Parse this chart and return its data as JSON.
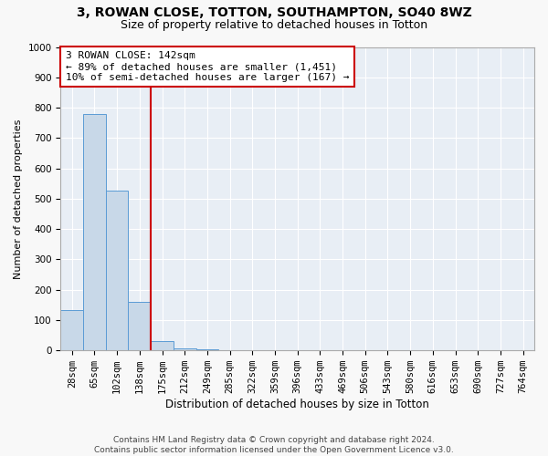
{
  "title1": "3, ROWAN CLOSE, TOTTON, SOUTHAMPTON, SO40 8WZ",
  "title2": "Size of property relative to detached houses in Totton",
  "xlabel": "Distribution of detached houses by size in Totton",
  "ylabel": "Number of detached properties",
  "bar_labels": [
    "28sqm",
    "65sqm",
    "102sqm",
    "138sqm",
    "175sqm",
    "212sqm",
    "249sqm",
    "285sqm",
    "322sqm",
    "359sqm",
    "396sqm",
    "433sqm",
    "469sqm",
    "506sqm",
    "543sqm",
    "580sqm",
    "616sqm",
    "653sqm",
    "690sqm",
    "727sqm",
    "764sqm"
  ],
  "bar_heights": [
    133,
    778,
    527,
    160,
    30,
    8,
    3,
    1,
    0,
    0,
    0,
    0,
    0,
    0,
    0,
    0,
    0,
    0,
    0,
    0,
    0
  ],
  "bar_color": "#c8d8e8",
  "bar_edge_color": "#5b9bd5",
  "property_line_x": 3.5,
  "property_line_color": "#cc0000",
  "annotation_title": "3 ROWAN CLOSE: 142sqm",
  "annotation_line1": "← 89% of detached houses are smaller (1,451)",
  "annotation_line2": "10% of semi-detached houses are larger (167) →",
  "annotation_box_color": "#ffffff",
  "annotation_box_edge": "#cc0000",
  "ylim": [
    0,
    1000
  ],
  "yticks": [
    0,
    100,
    200,
    300,
    400,
    500,
    600,
    700,
    800,
    900,
    1000
  ],
  "plot_bg_color": "#e8eef5",
  "fig_bg_color": "#f8f8f8",
  "grid_color": "#ffffff",
  "footer": "Contains HM Land Registry data © Crown copyright and database right 2024.\nContains public sector information licensed under the Open Government Licence v3.0.",
  "title1_fontsize": 10,
  "title2_fontsize": 9,
  "xlabel_fontsize": 8.5,
  "ylabel_fontsize": 8,
  "tick_fontsize": 7.5,
  "annotation_fontsize": 8,
  "footer_fontsize": 6.5
}
